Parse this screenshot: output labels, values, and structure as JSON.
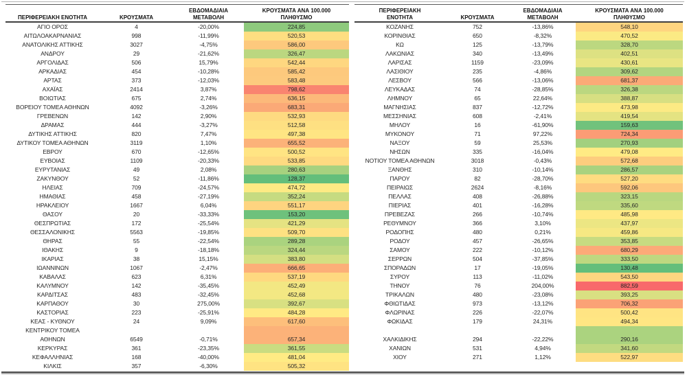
{
  "chart_data": {
    "type": "table",
    "columns": [
      "ΠΕΡΙΦΕΡΕΙΑΚΗ ΕΝΟΤΗΤΑ",
      "ΚΡΟΥΣΜΑΤΑ",
      "ΕΒΔΟΜΑΔΙΑΙΑ ΜΕΤΑΒΟΛΗ",
      "ΚΡΟΥΣΜΑΤΑ ΑΝΑ 100.000 ΠΛΗΘΥΣΜΟ"
    ],
    "color_scale": {
      "min_value": 128.37,
      "mid_value": 480,
      "max_value": 882.59,
      "min_color": "#63BE7B",
      "mid_color": "#FFEB84",
      "max_color": "#F8696B"
    },
    "left_rows": [
      [
        "ΑΓΙΟ ΟΡΟΣ",
        "4",
        "-20,00%",
        "224,85",
        224.85
      ],
      [
        "ΑΙΤΩΛΟΑΚΑΡΝΑΝΙΑΣ",
        "998",
        "-11,99%",
        "520,53",
        520.53
      ],
      [
        "ΑΝΑΤΟΛΙΚΗΣ ΑΤΤΙΚΗΣ",
        "3027",
        "-4,75%",
        "586,00",
        586.0
      ],
      [
        "ΑΝΔΡΟΥ",
        "29",
        "-21,62%",
        "326,47",
        326.47
      ],
      [
        "ΑΡΓΟΛΙΔΑΣ",
        "506",
        "15,79%",
        "542,44",
        542.44
      ],
      [
        "ΑΡΚΑΔΙΑΣ",
        "454",
        "-10,28%",
        "585,42",
        585.42
      ],
      [
        "ΑΡΤΑΣ",
        "373",
        "-12,03%",
        "583,48",
        583.48
      ],
      [
        "ΑΧΑΪΑΣ",
        "2414",
        "3,87%",
        "798,62",
        798.62
      ],
      [
        "ΒΟΙΩΤΙΑΣ",
        "675",
        "2,74%",
        "636,15",
        636.15
      ],
      [
        "ΒΟΡΕΙΟΥ ΤΟΜΕΑ ΑΘΗΝΩΝ",
        "4092",
        "-3,26%",
        "683,31",
        683.31
      ],
      [
        "ΓΡΕΒΕΝΩΝ",
        "142",
        "2,90%",
        "532,93",
        532.93
      ],
      [
        "ΔΡΑΜΑΣ",
        "444",
        "-3,27%",
        "512,58",
        512.58
      ],
      [
        "ΔΥΤΙΚΗΣ ΑΤΤΙΚΗΣ",
        "820",
        "7,47%",
        "497,38",
        497.38
      ],
      [
        "ΔΥΤΙΚΟΥ ΤΟΜΕΑ ΑΘΗΝΩΝ",
        "3119",
        "1,10%",
        "655,52",
        655.52
      ],
      [
        "ΕΒΡΟΥ",
        "670",
        "-12,65%",
        "500,52",
        500.52
      ],
      [
        "ΕΥΒΟΙΑΣ",
        "1109",
        "-20,33%",
        "533,85",
        533.85
      ],
      [
        "ΕΥΡΥΤΑΝΙΑΣ",
        "49",
        "2,08%",
        "280,63",
        280.63
      ],
      [
        "ΖΑΚΥΝΘΟΥ",
        "52",
        "-11,86%",
        "128,37",
        128.37
      ],
      [
        "ΗΛΕΙΑΣ",
        "709",
        "-24,57%",
        "474,72",
        474.72
      ],
      [
        "ΗΜΑΘΙΑΣ",
        "458",
        "-27,19%",
        "352,24",
        352.24
      ],
      [
        "ΗΡΑΚΛΕΙΟΥ",
        "1667",
        "6,04%",
        "551,17",
        551.17
      ],
      [
        "ΘΑΣΟΥ",
        "20",
        "-33,33%",
        "153,20",
        153.2
      ],
      [
        "ΘΕΣΠΡΩΤΙΑΣ",
        "172",
        "-25,54%",
        "421,29",
        421.29
      ],
      [
        "ΘΕΣΣΑΛΟΝΙΚΗΣ",
        "5563",
        "-19,85%",
        "509,70",
        509.7
      ],
      [
        "ΘΗΡΑΣ",
        "55",
        "-22,54%",
        "289,28",
        289.28
      ],
      [
        "ΙΘΑΚΗΣ",
        "9",
        "-18,18%",
        "324,44",
        324.44
      ],
      [
        "ΙΚΑΡΙΑΣ",
        "38",
        "15,15%",
        "383,80",
        383.8
      ],
      [
        "ΙΩΑΝΝΙΝΩΝ",
        "1067",
        "-2,47%",
        "666,65",
        666.65
      ],
      [
        "ΚΑΒΑΛΑΣ",
        "623",
        "6,31%",
        "537,19",
        537.19
      ],
      [
        "ΚΑΛΥΜΝΟΥ",
        "142",
        "-35,45%",
        "452,49",
        452.49
      ],
      [
        "ΚΑΡΔΙΤΣΑΣ",
        "483",
        "-32,45%",
        "452,68",
        452.68
      ],
      [
        "ΚΑΡΠΑΘΟΥ",
        "30",
        "275,00%",
        "392,67",
        392.67
      ],
      [
        "ΚΑΣΤΟΡΙΑΣ",
        "223",
        "-25,91%",
        "484,28",
        484.28
      ],
      [
        "ΚΕΑΣ - ΚΥΘΝΟΥ",
        "24",
        "9,09%",
        "617,60",
        617.6
      ],
      [
        "ΚΕΝΤΡΙΚΟΥ ΤΟΜΕΑ",
        "",
        "",
        "",
        657.34
      ],
      [
        "ΑΘΗΝΩΝ",
        "6549",
        "-0,71%",
        "657,34",
        657.34
      ],
      [
        "ΚΕΡΚΥΡΑΣ",
        "361",
        "-23,35%",
        "361,55",
        361.55
      ],
      [
        "ΚΕΦΑΛΛΗΝΙΑΣ",
        "168",
        "-40,00%",
        "481,04",
        481.04
      ],
      [
        "ΚΙΛΚΙΣ",
        "357",
        "-6,30%",
        "505,32",
        505.32
      ]
    ],
    "right_rows": [
      [
        "ΚΟΖΑΝΗΣ",
        "752",
        "-13,86%",
        "548,10",
        548.1
      ],
      [
        "ΚΟΡΙΝΘΙΑΣ",
        "650",
        "-8,32%",
        "470,52",
        470.52
      ],
      [
        "ΚΩ",
        "125",
        "-13,79%",
        "328,70",
        328.7
      ],
      [
        "ΛΑΚΩΝΙΑΣ",
        "340",
        "-13,49%",
        "402,51",
        402.51
      ],
      [
        "ΛΑΡΙΣΑΣ",
        "1159",
        "-23,09%",
        "430,61",
        430.61
      ],
      [
        "ΛΑΣΙΘΙΟΥ",
        "235",
        "-4,86%",
        "309,62",
        309.62
      ],
      [
        "ΛΕΣΒΟΥ",
        "566",
        "-13,06%",
        "681,37",
        681.37
      ],
      [
        "ΛΕΥΚΑΔΑΣ",
        "74",
        "-28,85%",
        "326,38",
        326.38
      ],
      [
        "ΛΗΜΝΟΥ",
        "65",
        "22,64%",
        "388,87",
        388.87
      ],
      [
        "ΜΑΓΝΗΣΙΑΣ",
        "837",
        "-12,72%",
        "473,98",
        473.98
      ],
      [
        "ΜΕΣΣΗΝΙΑΣ",
        "608",
        "-2,41%",
        "419,54",
        419.54
      ],
      [
        "ΜΗΛΟΥ",
        "16",
        "-61,90%",
        "159,63",
        159.63
      ],
      [
        "ΜΥΚΟΝΟΥ",
        "71",
        "97,22%",
        "724,34",
        724.34
      ],
      [
        "ΝΑΞΟΥ",
        "59",
        "25,53%",
        "270,93",
        270.93
      ],
      [
        "ΝΗΣΩΝ",
        "335",
        "-16,04%",
        "479,08",
        479.08
      ],
      [
        "ΝΟΤΙΟΥ ΤΟΜΕΑ ΑΘΗΝΩΝ",
        "3018",
        "-0,43%",
        "572,68",
        572.68
      ],
      [
        "ΞΑΝΘΗΣ",
        "310",
        "-10,14%",
        "286,57",
        286.57
      ],
      [
        "ΠΑΡΟΥ",
        "82",
        "-28,70%",
        "527,20",
        527.2
      ],
      [
        "ΠΕΙΡΑΙΩΣ",
        "2624",
        "-8,16%",
        "592,06",
        592.06
      ],
      [
        "ΠΕΛΛΑΣ",
        "408",
        "-26,88%",
        "323,15",
        323.15
      ],
      [
        "ΠΙΕΡΙΑΣ",
        "401",
        "-16,28%",
        "335,60",
        335.6
      ],
      [
        "ΠΡΕΒΕΖΑΣ",
        "266",
        "-10,74%",
        "485,98",
        485.98
      ],
      [
        "ΡΕΘΥΜΝΟΥ",
        "366",
        "3,10%",
        "437,97",
        437.97
      ],
      [
        "ΡΟΔΟΠΗΣ",
        "480",
        "0,21%",
        "459,86",
        459.86
      ],
      [
        "ΡΟΔΟΥ",
        "457",
        "-26,65%",
        "353,85",
        353.85
      ],
      [
        "ΣΑΜΟΥ",
        "222",
        "-10,12%",
        "680,29",
        680.29
      ],
      [
        "ΣΕΡΡΩΝ",
        "504",
        "-37,85%",
        "333,50",
        333.5
      ],
      [
        "ΣΠΟΡΑΔΩΝ",
        "17",
        "-19,05%",
        "130,48",
        130.48
      ],
      [
        "ΣΥΡΟΥ",
        "113",
        "-11,02%",
        "543,50",
        543.5
      ],
      [
        "ΤΗΝΟΥ",
        "76",
        "204,00%",
        "882,59",
        882.59
      ],
      [
        "ΤΡΙΚΑΛΩΝ",
        "480",
        "-23,08%",
        "393,25",
        393.25
      ],
      [
        "ΦΘΙΩΤΙΔΑΣ",
        "973",
        "-13,12%",
        "706,32",
        706.32
      ],
      [
        "ΦΛΩΡΙΝΑΣ",
        "226",
        "-22,07%",
        "500,42",
        500.42
      ],
      [
        "ΦΩΚΙΔΑΣ",
        "179",
        "24,31%",
        "494,34",
        494.34
      ],
      [
        "",
        "",
        "",
        "",
        290.16
      ],
      [
        "ΧΑΛΚΙΔΙΚΗΣ",
        "294",
        "-22,22%",
        "290,16",
        290.16
      ],
      [
        "ΧΑΝΙΩΝ",
        "531",
        "4,94%",
        "341,60",
        341.6
      ],
      [
        "ΧΙΟΥ",
        "271",
        "1,12%",
        "522,97",
        522.97
      ],
      [
        "",
        "",
        "",
        "",
        null
      ]
    ]
  }
}
